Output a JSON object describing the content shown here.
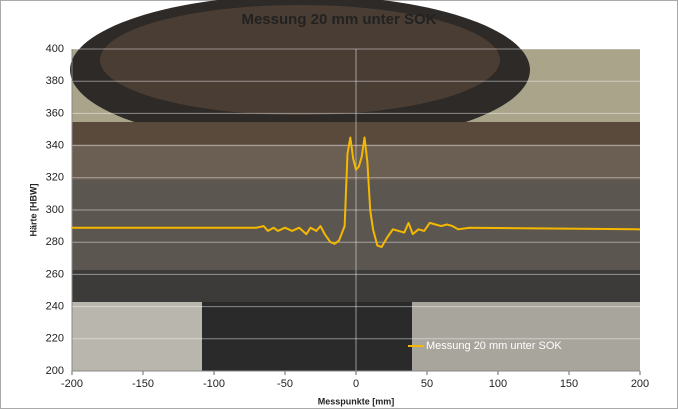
{
  "chart_data": {
    "type": "line",
    "title": "Messung 20 mm unter SOK",
    "x_label": "Messpunkte [mm]",
    "y_label": "Härte [HBW]",
    "xlim": [
      -200,
      200
    ],
    "xticks": [
      -200,
      -150,
      -100,
      -50,
      0,
      50,
      100,
      150,
      200
    ],
    "ylim": [
      200,
      400
    ],
    "yticks": [
      200,
      220,
      240,
      260,
      280,
      300,
      320,
      340,
      360,
      380,
      400
    ],
    "grid": true,
    "legend": "lower right",
    "series": [
      {
        "name": "Messung 20 mm unter SOK",
        "color": "#f5b800",
        "x": [
          -200,
          -70,
          -65,
          -62,
          -58,
          -55,
          -50,
          -45,
          -40,
          -35,
          -32,
          -28,
          -25,
          -22,
          -18,
          -15,
          -12,
          -8,
          -6,
          -4,
          -2,
          0,
          2,
          4,
          6,
          8,
          10,
          12,
          15,
          18,
          22,
          26,
          30,
          34,
          37,
          40,
          44,
          48,
          52,
          56,
          60,
          64,
          68,
          72,
          80,
          200
        ],
        "values": [
          289,
          289,
          290,
          287,
          289,
          287,
          289,
          287,
          289,
          285,
          289,
          287,
          290,
          285,
          280,
          279,
          281,
          290,
          335,
          345,
          332,
          325,
          327,
          333,
          345,
          330,
          300,
          288,
          278,
          277,
          283,
          288,
          287,
          286,
          292,
          285,
          288,
          287,
          292,
          291,
          290,
          291,
          290,
          288,
          289,
          288
        ]
      }
    ]
  }
}
